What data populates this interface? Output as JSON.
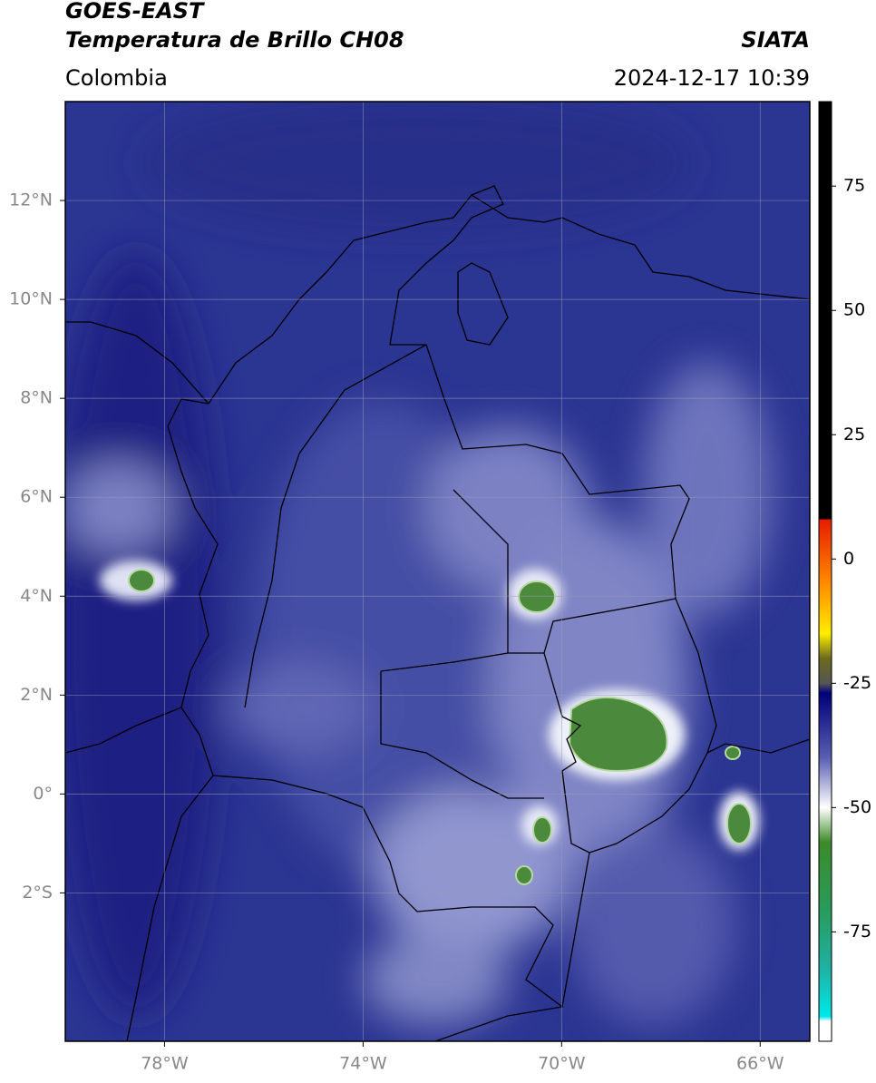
{
  "header": {
    "satellite": "GOES-EAST",
    "product": "Temperatura de Brillo CH08",
    "source": "SIATA",
    "region": "Colombia",
    "datetime": "2024-12-17 10:39"
  },
  "map": {
    "lonlim": [
      -80,
      -65
    ],
    "latlim": [
      -5,
      14
    ],
    "xticks": [
      {
        "value": -78,
        "label": "78°W"
      },
      {
        "value": -74,
        "label": "74°W"
      },
      {
        "value": -70,
        "label": "70°W"
      },
      {
        "value": -66,
        "label": "66°W"
      }
    ],
    "yticks": [
      {
        "value": 12,
        "label": "12°N"
      },
      {
        "value": 10,
        "label": "10°N"
      },
      {
        "value": 8,
        "label": "8°N"
      },
      {
        "value": 6,
        "label": "6°N"
      },
      {
        "value": 4,
        "label": "4°N"
      },
      {
        "value": 2,
        "label": "2°N"
      },
      {
        "value": 0,
        "label": "0°"
      },
      {
        "value": -2,
        "label": "2°S"
      }
    ],
    "grid": true
  },
  "colorbar": {
    "clim": [
      -97,
      92
    ],
    "ticks": [
      75,
      50,
      25,
      0,
      -25,
      -50,
      -75
    ],
    "colormap": [
      {
        "value": 92,
        "color": "#000000"
      },
      {
        "value": 8,
        "color": "#000000"
      },
      {
        "value": 8,
        "color": "#e61c00"
      },
      {
        "value": -5,
        "color": "#ff8c00"
      },
      {
        "value": -15,
        "color": "#ffee00"
      },
      {
        "value": -20,
        "color": "#6b6b1e"
      },
      {
        "value": -25,
        "color": "#555555"
      },
      {
        "value": -27,
        "color": "#00007a"
      },
      {
        "value": -40,
        "color": "#5a5fb0"
      },
      {
        "value": -50,
        "color": "#ffffff"
      },
      {
        "value": -57,
        "color": "#3c8a2a"
      },
      {
        "value": -70,
        "color": "#2a9a5a"
      },
      {
        "value": -82,
        "color": "#20b0a0"
      },
      {
        "value": -92,
        "color": "#00e8e8"
      },
      {
        "value": -93,
        "color": "#ffffff"
      },
      {
        "value": -97,
        "color": "#ffffff"
      }
    ]
  }
}
